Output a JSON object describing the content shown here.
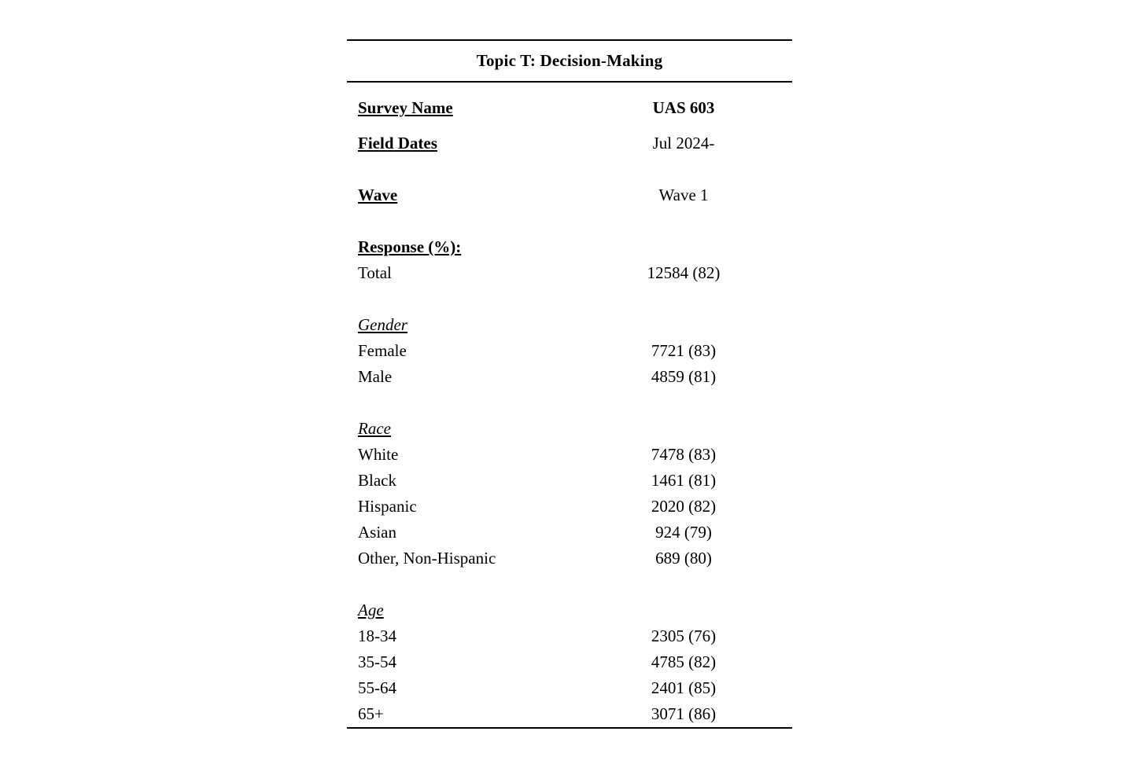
{
  "table": {
    "title": "Topic T: Decision-Making",
    "meta": [
      {
        "label": "Survey Name",
        "value": "UAS 603"
      },
      {
        "label": "Field Dates",
        "value": "Jul 2024-"
      },
      {
        "label": "Wave",
        "value": "Wave 1"
      }
    ],
    "response_heading": "Response (%):",
    "total": {
      "label": "Total",
      "value": "12584 (82)"
    },
    "sections": [
      {
        "heading": "Gender",
        "rows": [
          {
            "label": "Female",
            "value": "7721 (83)"
          },
          {
            "label": "Male",
            "value": "4859 (81)"
          }
        ]
      },
      {
        "heading": "Race",
        "rows": [
          {
            "label": "White",
            "value": "7478 (83)"
          },
          {
            "label": "Black",
            "value": "1461 (81)"
          },
          {
            "label": "Hispanic",
            "value": "2020 (82)"
          },
          {
            "label": "Asian",
            "value": "924 (79)"
          },
          {
            "label": "Other, Non-Hispanic",
            "value": "689 (80)"
          }
        ]
      },
      {
        "heading": "Age",
        "rows": [
          {
            "label": "18-34",
            "value": "2305 (76)"
          },
          {
            "label": "35-54",
            "value": "4785 (82)"
          },
          {
            "label": "55-64",
            "value": "2401 (85)"
          },
          {
            "label": "65+",
            "value": "3071 (86)"
          }
        ]
      }
    ]
  }
}
